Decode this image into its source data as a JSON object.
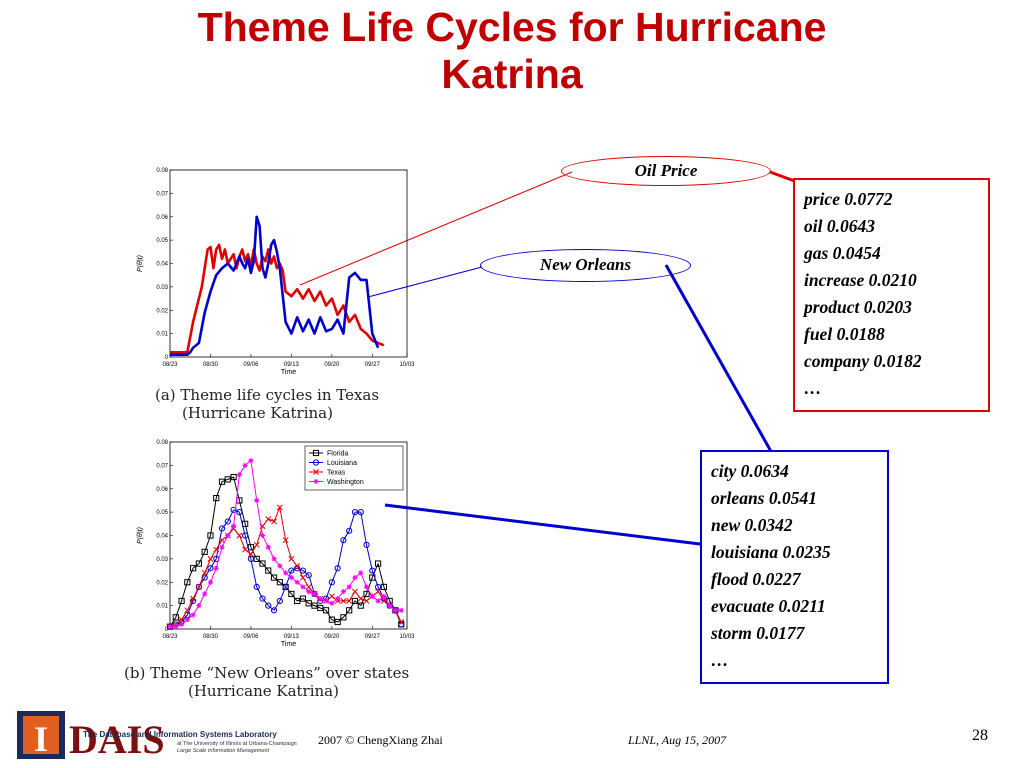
{
  "slide": {
    "title_line1": "Theme Life Cycles for Hurricane",
    "title_line2": "Katrina",
    "footer_left": "2007  © ChengXiang Zhai",
    "footer_mid": "LLNL,   Aug 15, 2007",
    "page_number": "28",
    "logo": {
      "big": "DAIS",
      "line1": "The Database and Information Systems Laboratory",
      "line2": "at The University of Illinois at Urbana-Champaign",
      "line3": "Large Scale Information Management"
    },
    "colors": {
      "title": "#c00000",
      "red_box": "#e00000",
      "blue_box": "#0000cc"
    }
  },
  "callouts": {
    "oil_price": {
      "label": "Oil Price",
      "terms": [
        "price  0.0772",
        "oil 0.0643",
        "gas 0.0454",
        "increase 0.0210",
        "product 0.0203",
        "fuel  0.0188",
        "company 0.0182",
        "…"
      ]
    },
    "new_orleans": {
      "label": "New Orleans",
      "terms": [
        "city   0.0634",
        "orleans  0.0541",
        "new 0.0342",
        "louisiana 0.0235",
        "flood  0.0227",
        "evacuate 0.0211",
        "storm 0.0177",
        "…"
      ]
    }
  },
  "chart_data": [
    {
      "type": "line",
      "caption_line1": "(a)  Theme life cycles in Texas",
      "caption_line2": "(Hurricane Katrina)",
      "xlabel": "Time",
      "ylabel": "P(θ|t)",
      "x_ticks": [
        "08/23",
        "08/30",
        "09/06",
        "09/13",
        "09/20",
        "09/27",
        "10/03"
      ],
      "y_ticks": [
        "0",
        "0.01",
        "0.02",
        "0.03",
        "0.04",
        "0.05",
        "0.06",
        "0.07",
        "0.08"
      ],
      "ylim": [
        0,
        0.08
      ],
      "x_day_range": [
        0,
        41
      ],
      "grid": false,
      "series": [
        {
          "color": "#e00000",
          "x": [
            0,
            2,
            3,
            4,
            5,
            5.5,
            6,
            6.5,
            7,
            7.5,
            8,
            8.5,
            9,
            9.5,
            10,
            10.5,
            11,
            11.5,
            12,
            12.5,
            13,
            13.5,
            14,
            14.5,
            15,
            15.5,
            16,
            16.5,
            17,
            17.5,
            18,
            18.5,
            19,
            19.5,
            20,
            21,
            22,
            23,
            24,
            25,
            26,
            27,
            28,
            29,
            30,
            31,
            32,
            33,
            34,
            35,
            36,
            37
          ],
          "y": [
            0.002,
            0.002,
            0.002,
            0.015,
            0.025,
            0.03,
            0.038,
            0.046,
            0.047,
            0.038,
            0.046,
            0.048,
            0.042,
            0.046,
            0.04,
            0.042,
            0.044,
            0.038,
            0.043,
            0.046,
            0.041,
            0.044,
            0.039,
            0.046,
            0.04,
            0.037,
            0.043,
            0.041,
            0.046,
            0.04,
            0.043,
            0.038,
            0.04,
            0.037,
            0.028,
            0.026,
            0.029,
            0.025,
            0.029,
            0.024,
            0.028,
            0.022,
            0.025,
            0.018,
            0.022,
            0.015,
            0.018,
            0.012,
            0.01,
            0.007,
            0.006,
            0.005
          ]
        },
        {
          "color": "#0000cc",
          "x": [
            0,
            3,
            3.5,
            4,
            5,
            6,
            7,
            8,
            9,
            10,
            11,
            12,
            12.5,
            13,
            13.5,
            14,
            14.5,
            15,
            15.5,
            16,
            16.5,
            17,
            17.5,
            18,
            18.5,
            19,
            20,
            21,
            22,
            23,
            24,
            25,
            26,
            27,
            28,
            29,
            30,
            31,
            32,
            33,
            34,
            35,
            36
          ],
          "y": [
            0.001,
            0.001,
            0.002,
            0.004,
            0.006,
            0.019,
            0.028,
            0.035,
            0.038,
            0.04,
            0.037,
            0.043,
            0.04,
            0.038,
            0.042,
            0.036,
            0.041,
            0.06,
            0.056,
            0.038,
            0.034,
            0.04,
            0.048,
            0.05,
            0.045,
            0.038,
            0.015,
            0.01,
            0.017,
            0.011,
            0.016,
            0.01,
            0.017,
            0.011,
            0.012,
            0.016,
            0.01,
            0.034,
            0.036,
            0.033,
            0.033,
            0.01,
            0.004
          ]
        }
      ]
    },
    {
      "type": "line",
      "caption_line1": "(b)  Theme “New Orleans” over states",
      "caption_line2": "(Hurricane Katrina)",
      "xlabel": "Time",
      "ylabel": "P(θ|t)",
      "x_ticks": [
        "08/23",
        "08/30",
        "09/06",
        "09/13",
        "09/20",
        "09/27",
        "10/03"
      ],
      "y_ticks": [
        "0",
        "0.01",
        "0.02",
        "0.03",
        "0.04",
        "0.05",
        "0.06",
        "0.07",
        "0.08"
      ],
      "ylim": [
        0,
        0.08
      ],
      "x_day_range": [
        0,
        41
      ],
      "grid": false,
      "legend_position": "top-right",
      "series": [
        {
          "name": "Florida",
          "color": "#000000",
          "marker": "square",
          "x": [
            0,
            1,
            2,
            3,
            4,
            5,
            6,
            7,
            8,
            9,
            10,
            11,
            12,
            13,
            14,
            15,
            16,
            17,
            18,
            19,
            20,
            21,
            22,
            23,
            24,
            25,
            26,
            27,
            28,
            29,
            30,
            31,
            32,
            33,
            34,
            35,
            36,
            37,
            38,
            39,
            40
          ],
          "y": [
            0.001,
            0.005,
            0.012,
            0.02,
            0.026,
            0.028,
            0.033,
            0.04,
            0.056,
            0.063,
            0.064,
            0.065,
            0.055,
            0.045,
            0.035,
            0.03,
            0.028,
            0.025,
            0.022,
            0.02,
            0.018,
            0.015,
            0.012,
            0.013,
            0.011,
            0.01,
            0.009,
            0.008,
            0.004,
            0.003,
            0.005,
            0.008,
            0.012,
            0.01,
            0.015,
            0.022,
            0.028,
            0.018,
            0.012,
            0.008,
            0.002
          ]
        },
        {
          "name": "Louisiana",
          "color": "#0000cc",
          "marker": "circle",
          "x": [
            0,
            1,
            2,
            3,
            4,
            5,
            6,
            7,
            8,
            9,
            10,
            11,
            12,
            13,
            14,
            15,
            16,
            17,
            18,
            19,
            20,
            21,
            22,
            23,
            24,
            25,
            26,
            27,
            28,
            29,
            30,
            31,
            32,
            33,
            34,
            35,
            36,
            37,
            38,
            39,
            40
          ],
          "y": [
            0.001,
            0.002,
            0.003,
            0.006,
            0.012,
            0.018,
            0.022,
            0.026,
            0.03,
            0.043,
            0.046,
            0.051,
            0.05,
            0.04,
            0.03,
            0.018,
            0.013,
            0.01,
            0.008,
            0.012,
            0.018,
            0.025,
            0.026,
            0.025,
            0.023,
            0.015,
            0.012,
            0.013,
            0.02,
            0.026,
            0.038,
            0.042,
            0.05,
            0.05,
            0.036,
            0.025,
            0.018,
            0.013,
            0.01,
            0.008,
            0.002
          ]
        },
        {
          "name": "Texas",
          "color": "#e00000",
          "marker": "x",
          "x": [
            0,
            1,
            2,
            3,
            4,
            5,
            6,
            7,
            8,
            9,
            10,
            11,
            12,
            13,
            14,
            15,
            16,
            17,
            18,
            19,
            20,
            21,
            22,
            23,
            24,
            25,
            26,
            27,
            28,
            29,
            30,
            31,
            32,
            33,
            34,
            35,
            36,
            37,
            38,
            39,
            40
          ],
          "y": [
            0.001,
            0.002,
            0.004,
            0.008,
            0.013,
            0.018,
            0.024,
            0.03,
            0.034,
            0.038,
            0.04,
            0.043,
            0.04,
            0.034,
            0.032,
            0.036,
            0.044,
            0.047,
            0.046,
            0.052,
            0.038,
            0.03,
            0.027,
            0.022,
            0.018,
            0.015,
            0.013,
            0.012,
            0.014,
            0.012,
            0.012,
            0.012,
            0.016,
            0.013,
            0.012,
            0.014,
            0.016,
            0.012,
            0.01,
            0.008,
            0.003
          ]
        },
        {
          "name": "Washington",
          "color": "#ff00ff",
          "marker": "star",
          "x": [
            0,
            1,
            2,
            3,
            4,
            5,
            6,
            7,
            8,
            9,
            10,
            11,
            12,
            13,
            14,
            15,
            16,
            17,
            18,
            19,
            20,
            21,
            22,
            23,
            24,
            25,
            26,
            27,
            28,
            29,
            30,
            31,
            32,
            33,
            34,
            35,
            36,
            37,
            38,
            39,
            40
          ],
          "y": [
            0.001,
            0.001,
            0.002,
            0.004,
            0.006,
            0.01,
            0.015,
            0.02,
            0.026,
            0.035,
            0.04,
            0.044,
            0.066,
            0.07,
            0.072,
            0.055,
            0.04,
            0.035,
            0.03,
            0.027,
            0.024,
            0.022,
            0.02,
            0.018,
            0.016,
            0.015,
            0.013,
            0.012,
            0.011,
            0.013,
            0.016,
            0.018,
            0.022,
            0.024,
            0.018,
            0.014,
            0.012,
            0.014,
            0.01,
            0.008,
            0.008
          ]
        }
      ]
    }
  ]
}
